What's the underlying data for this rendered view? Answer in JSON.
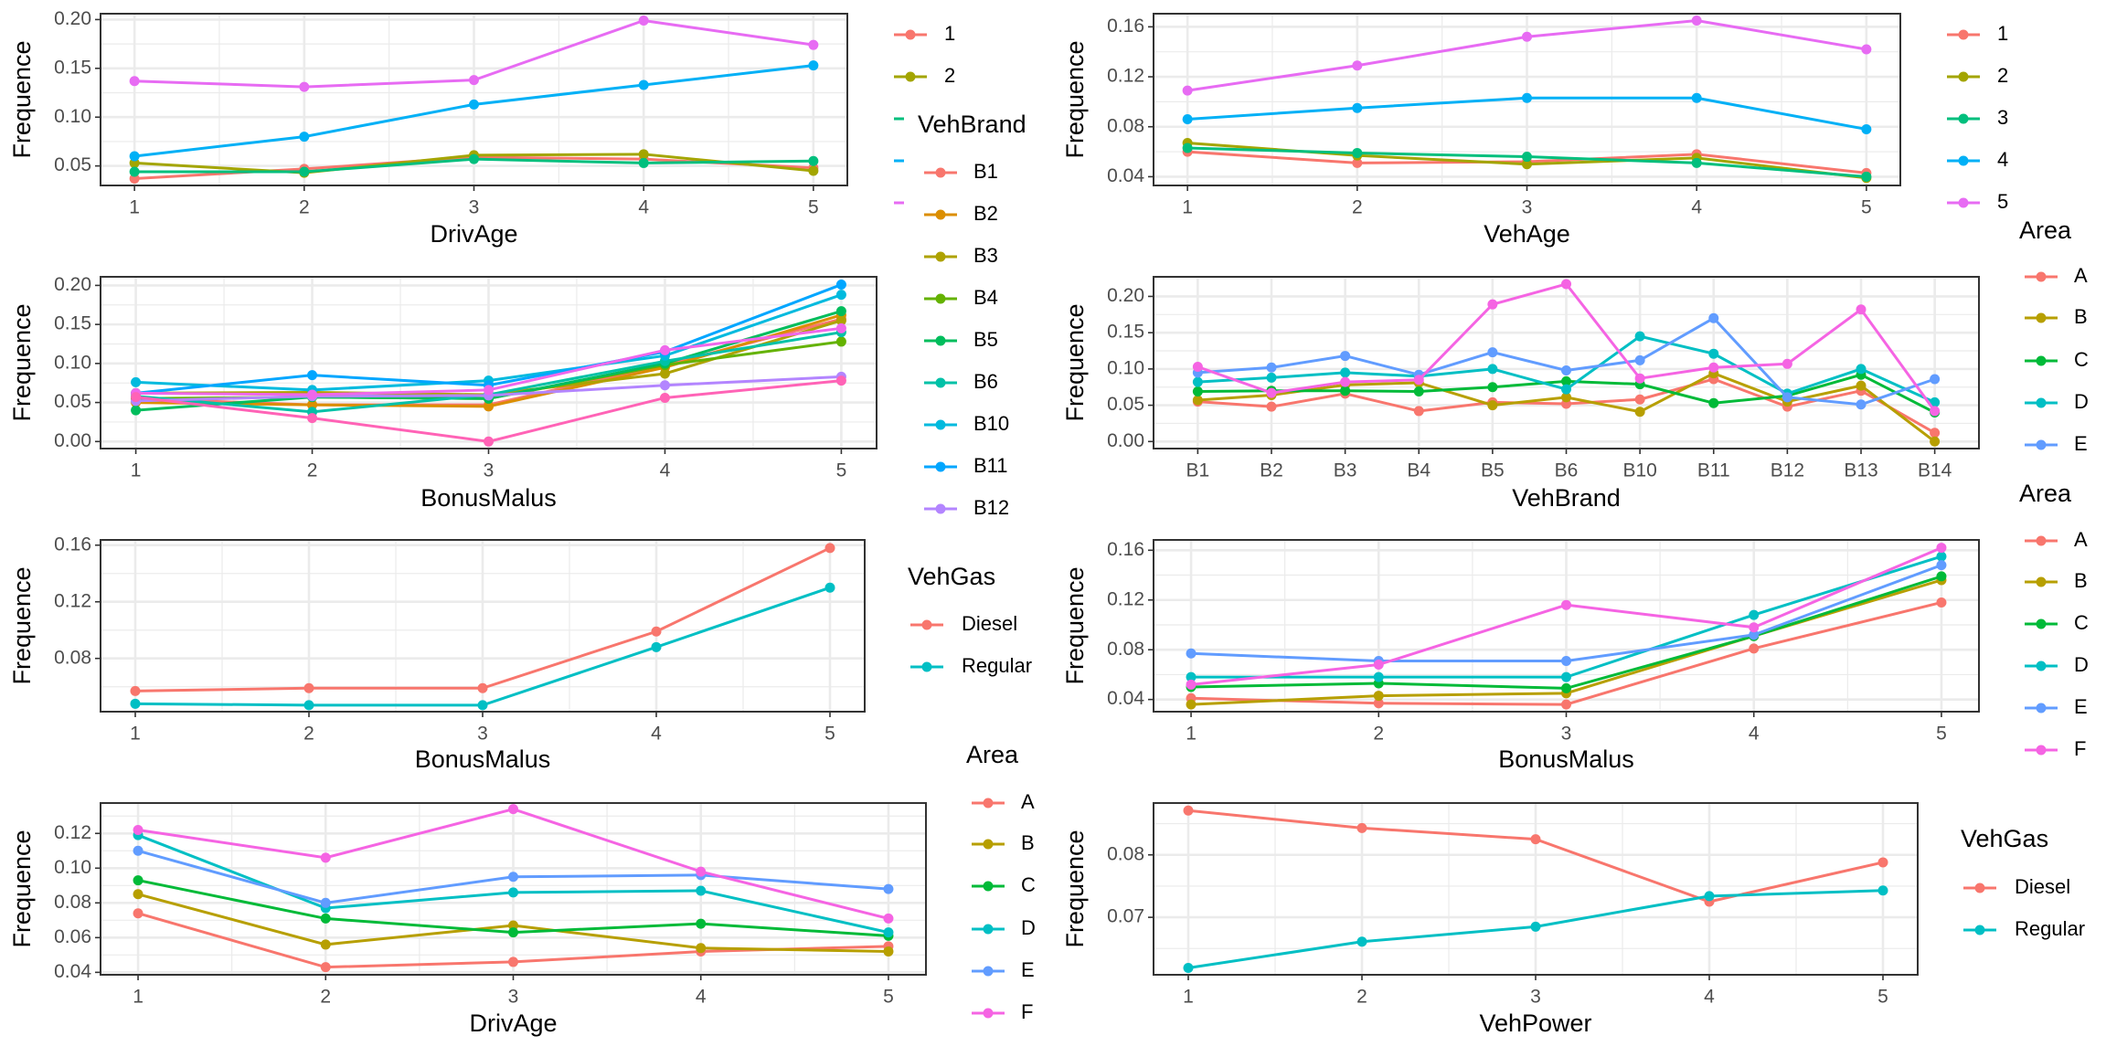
{
  "chart_data": [
    {
      "type": "line",
      "xlabel": "DrivAge",
      "ylabel": "Frequence",
      "categories": [
        "1",
        "2",
        "3",
        "4",
        "5"
      ],
      "ylim": [
        0.03,
        0.206
      ],
      "yticks": [
        "0.05",
        "0.10",
        "0.15",
        "0.20"
      ],
      "grid": true,
      "series": [
        {
          "name": "1",
          "color": "#F8766D",
          "values": [
            0.037,
            0.047,
            0.059,
            0.057,
            0.048
          ]
        },
        {
          "name": "2",
          "color": "#A3A500",
          "values": [
            0.053,
            0.043,
            0.061,
            0.062,
            0.045
          ]
        },
        {
          "color": "#00BF7D",
          "values": [
            0.044,
            0.044,
            0.057,
            0.053,
            0.055
          ]
        },
        {
          "color": "#00B0F6",
          "values": [
            0.06,
            0.08,
            0.113,
            0.133,
            0.153
          ]
        },
        {
          "color": "#E76BF3",
          "values": [
            0.137,
            0.131,
            0.138,
            0.199,
            0.174
          ]
        }
      ],
      "legend": {
        "title": "",
        "entries": [
          {
            "label": "1",
            "color": "#F8766D"
          },
          {
            "label": "2",
            "color": "#A3A500"
          }
        ],
        "dashes": [
          "#00BF7D",
          "#00B0F6",
          "#E76BF3"
        ]
      }
    },
    {
      "type": "line",
      "xlabel": "VehAge",
      "ylabel": "Frequence",
      "categories": [
        "1",
        "2",
        "3",
        "4",
        "5"
      ],
      "ylim": [
        0.033,
        0.1705
      ],
      "yticks": [
        "0.04",
        "0.08",
        "0.12",
        "0.16"
      ],
      "grid": true,
      "series": [
        {
          "name": "1",
          "color": "#F8766D",
          "values": [
            0.06,
            0.051,
            0.052,
            0.058,
            0.043
          ]
        },
        {
          "name": "2",
          "color": "#A3A500",
          "values": [
            0.067,
            0.057,
            0.05,
            0.055,
            0.039
          ]
        },
        {
          "name": "3",
          "color": "#00BF7D",
          "values": [
            0.063,
            0.059,
            0.056,
            0.051,
            0.04
          ]
        },
        {
          "name": "4",
          "color": "#00B0F6",
          "values": [
            0.086,
            0.095,
            0.103,
            0.103,
            0.078
          ]
        },
        {
          "name": "5",
          "color": "#E76BF3",
          "values": [
            0.109,
            0.129,
            0.152,
            0.165,
            0.142
          ]
        }
      ],
      "legend": {
        "title": "",
        "entries": [
          {
            "label": "1",
            "color": "#F8766D"
          },
          {
            "label": "2",
            "color": "#A3A500"
          },
          {
            "label": "3",
            "color": "#00BF7D"
          },
          {
            "label": "4",
            "color": "#00B0F6"
          },
          {
            "label": "5",
            "color": "#E76BF3"
          }
        ]
      }
    },
    {
      "type": "line",
      "xlabel": "BonusMalus",
      "ylabel": "Frequence",
      "categories": [
        "1",
        "2",
        "3",
        "4",
        "5"
      ],
      "ylim": [
        -0.009,
        0.211
      ],
      "yticks": [
        "0.00",
        "0.05",
        "0.10",
        "0.15",
        "0.20"
      ],
      "grid": true,
      "series": [
        {
          "name": "B1",
          "color": "#F8766D",
          "values": [
            0.055,
            0.047,
            0.047,
            0.098,
            0.157
          ]
        },
        {
          "name": "B2",
          "color": "#DB8E00",
          "values": [
            0.05,
            0.047,
            0.045,
            0.095,
            0.162
          ]
        },
        {
          "name": "B3",
          "color": "#AEA200",
          "values": [
            0.062,
            0.063,
            0.06,
            0.087,
            0.155
          ]
        },
        {
          "name": "B4",
          "color": "#64B200",
          "values": [
            0.055,
            0.057,
            0.055,
            0.098,
            0.128
          ]
        },
        {
          "name": "B5",
          "color": "#00BD5C",
          "values": [
            0.04,
            0.057,
            0.055,
            0.1,
            0.167
          ]
        },
        {
          "name": "B6",
          "color": "#00C1A7",
          "values": [
            0.058,
            0.038,
            0.06,
            0.103,
            0.14
          ]
        },
        {
          "name": "B10",
          "color": "#00BADE",
          "values": [
            0.076,
            0.066,
            0.078,
            0.11,
            0.188
          ]
        },
        {
          "name": "B11",
          "color": "#00A6FF",
          "values": [
            0.062,
            0.085,
            0.072,
            0.115,
            0.201
          ]
        },
        {
          "name": "B12",
          "color": "#B385FF",
          "values": [
            0.052,
            0.058,
            0.059,
            0.072,
            0.083
          ]
        },
        {
          "color": "#EF67EB",
          "values": [
            0.062,
            0.06,
            0.066,
            0.117,
            0.145
          ]
        },
        {
          "color": "#FF63B6",
          "values": [
            0.057,
            0.03,
            0.0,
            0.056,
            0.078
          ]
        }
      ],
      "legend": {
        "title": "VehBrand",
        "entries": [
          {
            "label": "B1",
            "color": "#F8766D"
          },
          {
            "label": "B2",
            "color": "#DB8E00"
          },
          {
            "label": "B3",
            "color": "#AEA200"
          },
          {
            "label": "B4",
            "color": "#64B200"
          },
          {
            "label": "B5",
            "color": "#00BD5C"
          },
          {
            "label": "B6",
            "color": "#00C1A7"
          },
          {
            "label": "B10",
            "color": "#00BADE"
          },
          {
            "label": "B11",
            "color": "#00A6FF"
          },
          {
            "label": "B12",
            "color": "#B385FF"
          }
        ]
      }
    },
    {
      "type": "line",
      "xlabel": "VehBrand",
      "ylabel": "Frequence",
      "categories": [
        "B1",
        "B2",
        "B3",
        "B4",
        "B5",
        "B6",
        "B10",
        "B11",
        "B12",
        "B13",
        "B14"
      ],
      "ylim": [
        -0.0097,
        0.227
      ],
      "yticks": [
        "0.00",
        "0.05",
        "0.10",
        "0.15",
        "0.20"
      ],
      "grid": true,
      "series": [
        {
          "name": "A",
          "color": "#F8766D",
          "values": [
            0.055,
            0.048,
            0.066,
            0.042,
            0.054,
            0.052,
            0.058,
            0.086,
            0.048,
            0.07,
            0.012
          ]
        },
        {
          "name": "B",
          "color": "#B79F00",
          "values": [
            0.057,
            0.064,
            0.078,
            0.081,
            0.05,
            0.061,
            0.041,
            0.094,
            0.055,
            0.077,
            0.0
          ]
        },
        {
          "name": "C",
          "color": "#00BA38",
          "values": [
            0.069,
            0.07,
            0.07,
            0.069,
            0.075,
            0.083,
            0.079,
            0.053,
            0.063,
            0.092,
            0.04
          ]
        },
        {
          "name": "D",
          "color": "#00BFC4",
          "values": [
            0.082,
            0.088,
            0.095,
            0.09,
            0.1,
            0.072,
            0.145,
            0.121,
            0.066,
            0.1,
            0.054
          ]
        },
        {
          "name": "E",
          "color": "#619CFF",
          "values": [
            0.095,
            0.102,
            0.118,
            0.092,
            0.123,
            0.098,
            0.112,
            0.17,
            0.061,
            0.051,
            0.086
          ]
        },
        {
          "color": "#F564E3",
          "values": [
            0.103,
            0.067,
            0.082,
            0.085,
            0.189,
            0.217,
            0.087,
            0.102,
            0.107,
            0.182,
            0.042
          ]
        }
      ],
      "legend": {
        "title": "Area",
        "entries": [
          {
            "label": "A",
            "color": "#F8766D"
          },
          {
            "label": "B",
            "color": "#B79F00"
          },
          {
            "label": "C",
            "color": "#00BA38"
          },
          {
            "label": "D",
            "color": "#00BFC4"
          },
          {
            "label": "E",
            "color": "#619CFF"
          }
        ]
      }
    },
    {
      "type": "line",
      "xlabel": "BonusMalus",
      "ylabel": "Frequence",
      "categories": [
        "1",
        "2",
        "3",
        "4",
        "5"
      ],
      "ylim": [
        0.0424,
        0.1637
      ],
      "yticks": [
        "0.08",
        "0.12",
        "0.16"
      ],
      "grid": true,
      "series": [
        {
          "name": "Diesel",
          "color": "#F8766D",
          "values": [
            0.057,
            0.059,
            0.059,
            0.099,
            0.158
          ]
        },
        {
          "name": "Regular",
          "color": "#00BFC4",
          "values": [
            0.048,
            0.047,
            0.047,
            0.088,
            0.13
          ]
        }
      ],
      "legend": {
        "title": "VehGas",
        "entries": [
          {
            "label": "Diesel",
            "color": "#F8766D"
          },
          {
            "label": "Regular",
            "color": "#00BFC4"
          }
        ]
      }
    },
    {
      "type": "line",
      "xlabel": "BonusMalus",
      "ylabel": "Frequence",
      "categories": [
        "1",
        "2",
        "3",
        "4",
        "5"
      ],
      "ylim": [
        0.0302,
        0.1683
      ],
      "yticks": [
        "0.04",
        "0.08",
        "0.12",
        "0.16"
      ],
      "grid": true,
      "series": [
        {
          "name": "A",
          "color": "#F8766D",
          "values": [
            0.041,
            0.037,
            0.036,
            0.081,
            0.118
          ]
        },
        {
          "name": "B",
          "color": "#B79F00",
          "values": [
            0.036,
            0.043,
            0.045,
            0.091,
            0.136
          ]
        },
        {
          "name": "C",
          "color": "#00BA38",
          "values": [
            0.05,
            0.053,
            0.049,
            0.091,
            0.139
          ]
        },
        {
          "name": "D",
          "color": "#00BFC4",
          "values": [
            0.058,
            0.058,
            0.058,
            0.108,
            0.155
          ]
        },
        {
          "name": "E",
          "color": "#619CFF",
          "values": [
            0.077,
            0.071,
            0.071,
            0.092,
            0.148
          ]
        },
        {
          "name": "F",
          "color": "#F564E3",
          "values": [
            0.052,
            0.068,
            0.116,
            0.098,
            0.162
          ]
        }
      ],
      "legend": {
        "title": "Area",
        "entries": [
          {
            "label": "A",
            "color": "#F8766D"
          },
          {
            "label": "B",
            "color": "#B79F00"
          },
          {
            "label": "C",
            "color": "#00BA38"
          },
          {
            "label": "D",
            "color": "#00BFC4"
          },
          {
            "label": "E",
            "color": "#619CFF"
          },
          {
            "label": "F",
            "color": "#F564E3"
          }
        ]
      }
    },
    {
      "type": "line",
      "xlabel": "DrivAge",
      "ylabel": "Frequence",
      "categories": [
        "1",
        "2",
        "3",
        "4",
        "5"
      ],
      "ylim": [
        0.0386,
        0.1375
      ],
      "yticks": [
        "0.04",
        "0.06",
        "0.08",
        "0.10",
        "0.12"
      ],
      "grid": true,
      "series": [
        {
          "name": "A",
          "color": "#F8766D",
          "values": [
            0.074,
            0.043,
            0.046,
            0.052,
            0.055
          ]
        },
        {
          "name": "B",
          "color": "#B79F00",
          "values": [
            0.085,
            0.056,
            0.067,
            0.054,
            0.052
          ]
        },
        {
          "name": "C",
          "color": "#00BA38",
          "values": [
            0.093,
            0.071,
            0.063,
            0.068,
            0.061
          ]
        },
        {
          "name": "D",
          "color": "#00BFC4",
          "values": [
            0.119,
            0.077,
            0.086,
            0.087,
            0.063
          ]
        },
        {
          "name": "E",
          "color": "#619CFF",
          "values": [
            0.11,
            0.08,
            0.095,
            0.096,
            0.088
          ]
        },
        {
          "name": "F",
          "color": "#F564E3",
          "values": [
            0.122,
            0.106,
            0.134,
            0.098,
            0.071
          ]
        }
      ],
      "legend": {
        "title": "Area",
        "entries": [
          {
            "label": "A",
            "color": "#F8766D"
          },
          {
            "label": "B",
            "color": "#B79F00"
          },
          {
            "label": "C",
            "color": "#00BA38"
          },
          {
            "label": "D",
            "color": "#00BFC4"
          },
          {
            "label": "E",
            "color": "#619CFF"
          },
          {
            "label": "F",
            "color": "#F564E3"
          }
        ]
      }
    },
    {
      "type": "line",
      "xlabel": "VehPower",
      "ylabel": "Frequence",
      "categories": [
        "1",
        "2",
        "3",
        "4",
        "5"
      ],
      "ylim": [
        0.0608,
        0.0883
      ],
      "yticks": [
        "0.07",
        "0.08"
      ],
      "grid": true,
      "series": [
        {
          "name": "Diesel",
          "color": "#F8766D",
          "values": [
            0.0871,
            0.0843,
            0.0825,
            0.0725,
            0.0788
          ]
        },
        {
          "name": "Regular",
          "color": "#00BFC4",
          "values": [
            0.0619,
            0.0661,
            0.0685,
            0.0734,
            0.0743
          ]
        }
      ],
      "legend": {
        "title": "VehGas",
        "entries": [
          {
            "label": "Diesel",
            "color": "#F8766D"
          },
          {
            "label": "Regular",
            "color": "#00BFC4"
          }
        ]
      }
    }
  ]
}
